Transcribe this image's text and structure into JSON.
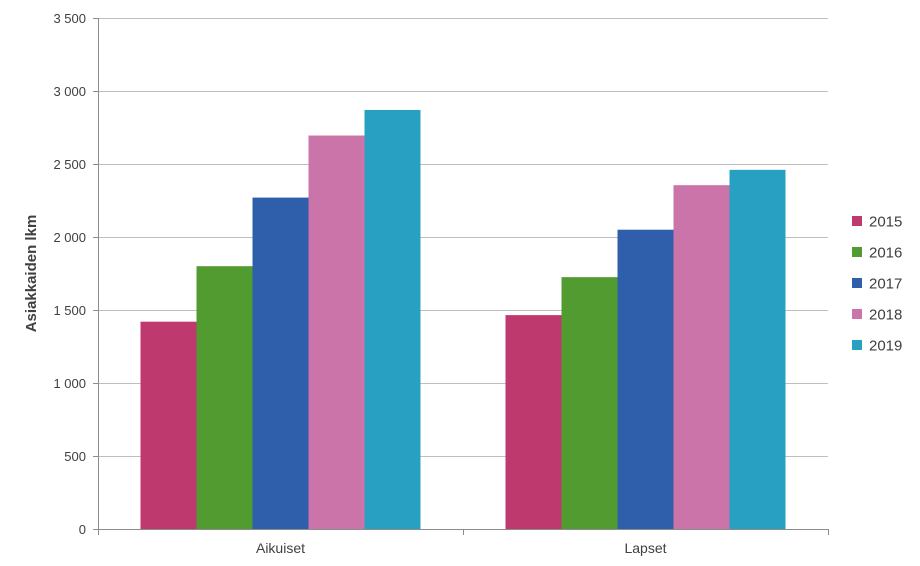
{
  "chart_data": {
    "type": "bar",
    "categories": [
      "Aikuiset",
      "Lapset"
    ],
    "series": [
      {
        "name": "2015",
        "values": [
          1420,
          1465
        ],
        "color": "#BE3A6E"
      },
      {
        "name": "2016",
        "values": [
          1800,
          1725
        ],
        "color": "#519B30"
      },
      {
        "name": "2017",
        "values": [
          2270,
          2050
        ],
        "color": "#2F5FAB"
      },
      {
        "name": "2018",
        "values": [
          2695,
          2355
        ],
        "color": "#CB74A9"
      },
      {
        "name": "2019",
        "values": [
          2870,
          2460
        ],
        "color": "#28A0C1"
      }
    ],
    "title": "",
    "xlabel": "",
    "ylabel": "Asiakkaiden lkm",
    "ylim": [
      0,
      3500
    ],
    "yticks": [
      0,
      500,
      1000,
      1500,
      2000,
      2500,
      3000,
      3500
    ],
    "ytick_labels": [
      "0",
      "500",
      "1 000",
      "1 500",
      "2 000",
      "2 500",
      "3 000",
      "3 500"
    ],
    "grid": true,
    "legend_position": "right"
  }
}
